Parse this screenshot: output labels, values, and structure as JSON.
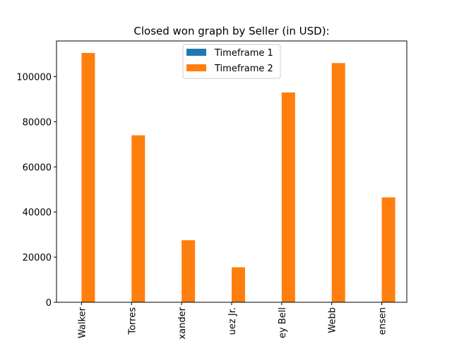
{
  "chart_data": {
    "type": "bar",
    "title": "Closed won graph by Seller (in USD):",
    "xlabel": "",
    "ylabel": "",
    "categories": [
      "Walker",
      "Torres",
      "xander",
      "uez Jr.",
      "ey Bell",
      "Webb",
      "ensen"
    ],
    "series": [
      {
        "name": "Timeframe 1",
        "color": "#1f77b4",
        "values": [
          0,
          0,
          0,
          0,
          0,
          0,
          0
        ]
      },
      {
        "name": "Timeframe 2",
        "color": "#ff7f0e",
        "values": [
          110500,
          74000,
          27500,
          15500,
          93000,
          106000,
          46500
        ]
      }
    ],
    "ylim": [
      0,
      115800
    ],
    "yticks": [
      0,
      20000,
      40000,
      60000,
      80000,
      100000
    ],
    "grid": false,
    "legend_position": "upper center"
  }
}
